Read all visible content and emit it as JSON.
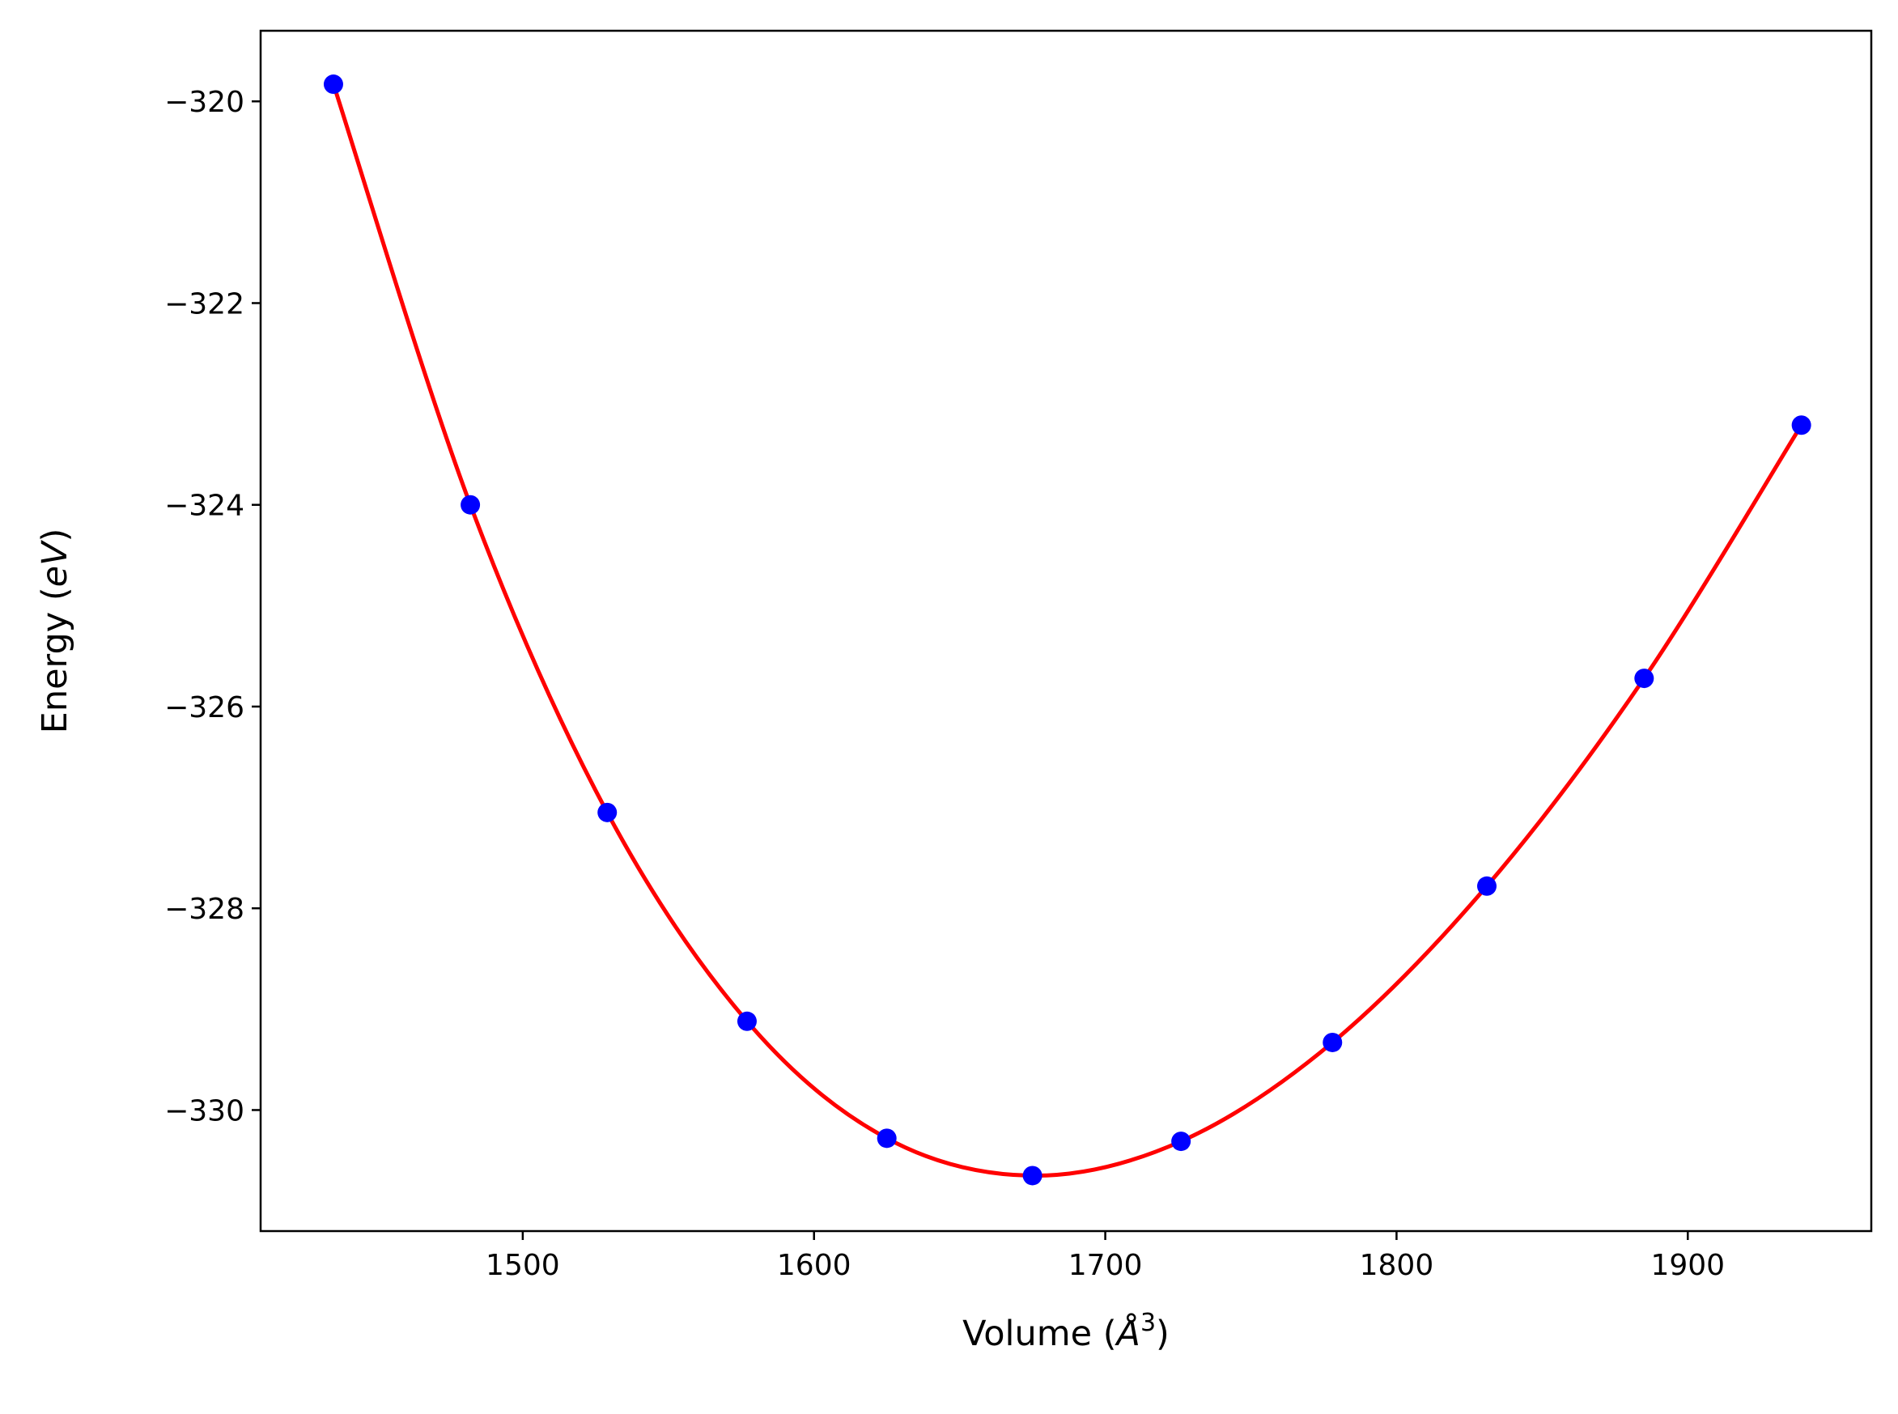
{
  "chart_data": {
    "type": "scatter",
    "title": "",
    "xlabel": "Volume (Å³)",
    "ylabel": "Energy (eV)",
    "xlabel_parts": {
      "prefix": "Volume (",
      "unit": "Å",
      "exponent": "3",
      "suffix": ")"
    },
    "ylabel_parts": {
      "prefix": "Energy (",
      "unit": "eV",
      "suffix": ")"
    },
    "xlim": [
      1410,
      1963
    ],
    "ylim": [
      -331.2,
      -319.3
    ],
    "xticks": [
      1500,
      1600,
      1700,
      1800,
      1900
    ],
    "xtick_labels": [
      "1500",
      "1600",
      "1700",
      "1800",
      "1900"
    ],
    "yticks": [
      -320,
      -322,
      -324,
      -326,
      -328,
      -330
    ],
    "ytick_labels": [
      "−320",
      "−322",
      "−324",
      "−326",
      "−328",
      "−330"
    ],
    "grid": false,
    "legend": "none",
    "series": [
      {
        "kind": "points",
        "color": "#0000ff",
        "x": [
          1435,
          1482,
          1529,
          1577,
          1625,
          1675,
          1726,
          1778,
          1831,
          1885,
          1939
        ],
        "y": [
          -319.83,
          -324.0,
          -327.05,
          -329.12,
          -330.28,
          -330.65,
          -330.31,
          -329.33,
          -327.78,
          -325.72,
          -323.21
        ]
      },
      {
        "kind": "fit-line",
        "color": "#ff0000",
        "x_min": 1435,
        "x_max": 1939
      }
    ]
  }
}
